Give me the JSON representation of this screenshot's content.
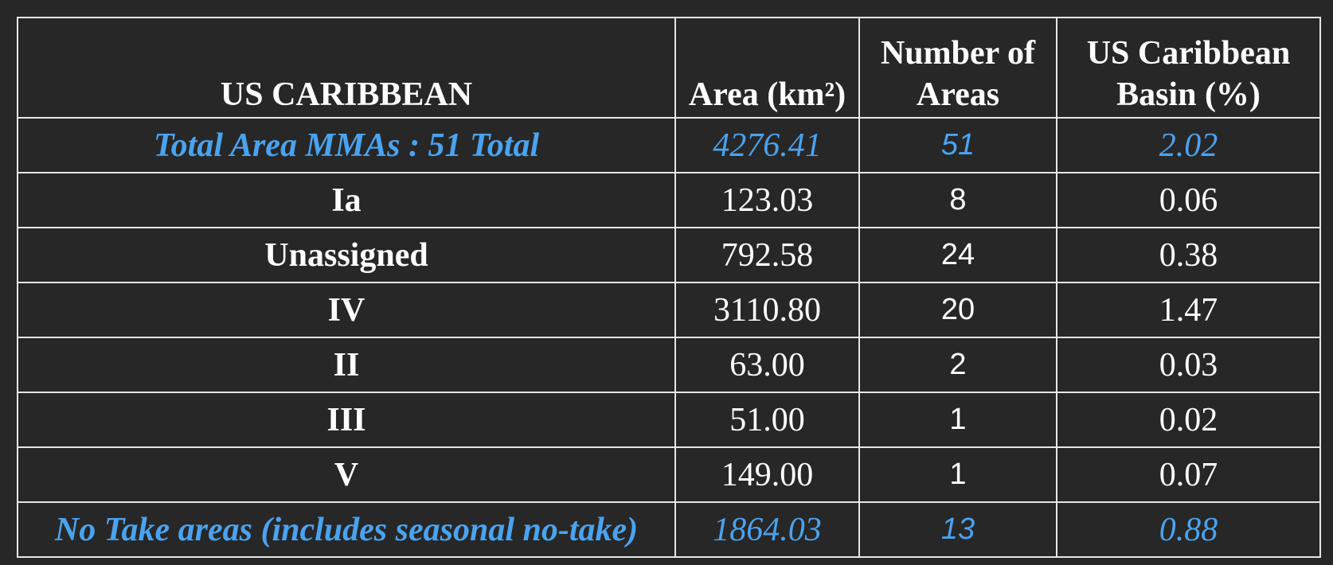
{
  "table": {
    "header": [
      "US CARIBBEAN",
      "Area (km²)",
      "Number of Areas",
      "US Caribbean Basin (%)"
    ],
    "rows": [
      {
        "cells": [
          "Total Area MMAs : 51 Total",
          "4276.41",
          "51",
          "2.02"
        ],
        "color": "#4aa3f0",
        "italic": true
      },
      {
        "cells": [
          "Ia",
          "123.03",
          "8",
          "0.06"
        ],
        "color": "#ffffff",
        "italic": false
      },
      {
        "cells": [
          "Unassigned",
          "792.58",
          "24",
          "0.38"
        ],
        "color": "#ffffff",
        "italic": false
      },
      {
        "cells": [
          "IV",
          "3110.80",
          "20",
          "1.47"
        ],
        "color": "#ffffff",
        "italic": false
      },
      {
        "cells": [
          "II",
          "63.00",
          "2",
          "0.03"
        ],
        "color": "#ffffff",
        "italic": false
      },
      {
        "cells": [
          "III",
          "51.00",
          "1",
          "0.02"
        ],
        "color": "#ffffff",
        "italic": false
      },
      {
        "cells": [
          "V",
          "149.00",
          "1",
          "0.07"
        ],
        "color": "#ffffff",
        "italic": false
      },
      {
        "cells": [
          "No Take areas (includes seasonal no-take)",
          "1864.03",
          "13",
          "0.88"
        ],
        "color": "#4aa3f0",
        "italic": true
      }
    ]
  }
}
